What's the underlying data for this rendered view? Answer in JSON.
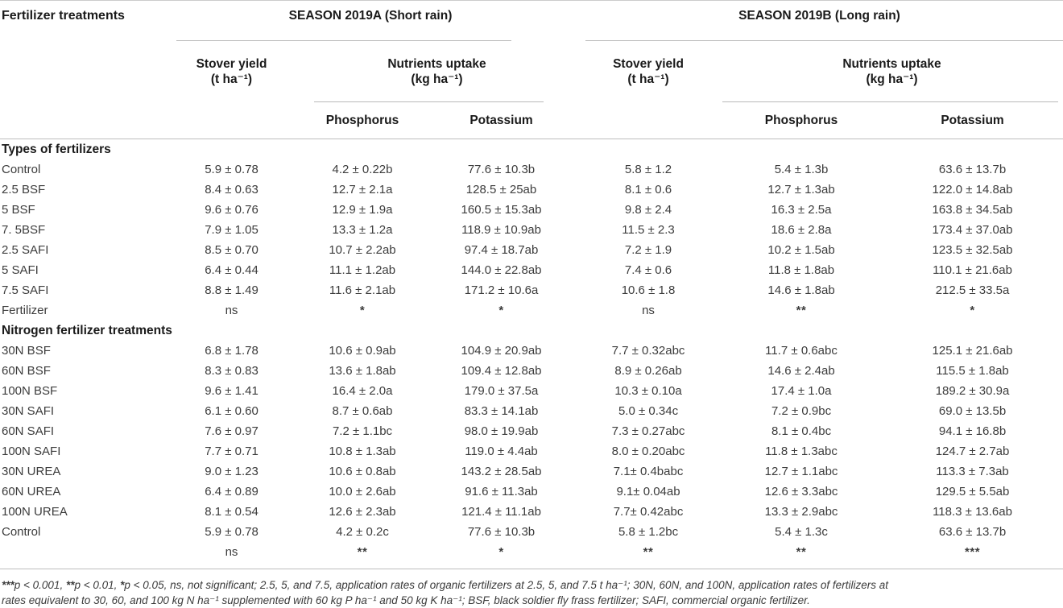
{
  "table": {
    "col1_header": "Fertilizer treatments",
    "season_a": "SEASON 2019A (Short rain)",
    "season_b": "SEASON 2019B (Long rain)",
    "headers": {
      "stover_yield": "Stover yield",
      "stover_unit": "(t ha⁻¹)",
      "nutrients_uptake": "Nutrients uptake",
      "nutrients_unit": "(kg ha⁻¹)",
      "phosphorus": "Phosphorus",
      "potassium": "Potassium"
    },
    "sections": [
      {
        "title": "Types of fertilizers",
        "rows": [
          {
            "label": "Control",
            "cells": [
              "5.9 ± 0.78",
              "4.2 ± 0.22b",
              "77.6 ± 10.3b",
              "5.8 ± 1.2",
              "5.4 ± 1.3b",
              "63.6 ± 13.7b"
            ]
          },
          {
            "label": "2.5 BSF",
            "cells": [
              "8.4 ± 0.63",
              "12.7 ± 2.1a",
              "128.5 ± 25ab",
              "8.1 ± 0.6",
              "12.7 ± 1.3ab",
              "122.0 ± 14.8ab"
            ]
          },
          {
            "label": "5 BSF",
            "cells": [
              "9.6 ± 0.76",
              "12.9 ± 1.9a",
              "160.5 ± 15.3ab",
              "9.8 ± 2.4",
              "16.3 ± 2.5a",
              "163.8 ± 34.5ab"
            ]
          },
          {
            "label": "7. 5BSF",
            "cells": [
              "7.9 ± 1.05",
              "13.3 ± 1.2a",
              "118.9 ± 10.9ab",
              "11.5 ± 2.3",
              "18.6 ± 2.8a",
              "173.4 ± 37.0ab"
            ]
          },
          {
            "label": "2.5 SAFI",
            "cells": [
              "8.5 ± 0.70",
              "10.7 ± 2.2ab",
              "97.4 ± 18.7ab",
              "7.2 ± 1.9",
              "10.2 ± 1.5ab",
              "123.5 ± 32.5ab"
            ]
          },
          {
            "label": "5 SAFI",
            "cells": [
              "6.4 ± 0.44",
              "11.1 ± 1.2ab",
              "144.0 ± 22.8ab",
              "7.4 ± 0.6",
              "11.8 ± 1.8ab",
              "110.1 ± 21.6ab"
            ]
          },
          {
            "label": "7.5 SAFI",
            "cells": [
              "8.8 ± 1.49",
              "11.6 ± 2.1ab",
              "171.2 ± 10.6a",
              "10.6 ± 1.8",
              "14.6 ± 1.8ab",
              "212.5 ± 33.5a"
            ]
          },
          {
            "label": "Fertilizer",
            "cells": [
              "ns",
              "*",
              "*",
              "ns",
              "**",
              "*"
            ]
          }
        ]
      },
      {
        "title": "Nitrogen fertilizer treatments",
        "rows": [
          {
            "label": "30N BSF",
            "cells": [
              "6.8 ± 1.78",
              "10.6 ± 0.9ab",
              "104.9 ± 20.9ab",
              "7.7 ± 0.32abc",
              "11.7 ± 0.6abc",
              "125.1 ± 21.6ab"
            ]
          },
          {
            "label": "60N BSF",
            "cells": [
              "8.3 ± 0.83",
              "13.6 ± 1.8ab",
              "109.4 ± 12.8ab",
              "8.9 ± 0.26ab",
              "14.6 ± 2.4ab",
              "115.5 ± 1.8ab"
            ]
          },
          {
            "label": "100N BSF",
            "cells": [
              "9.6 ± 1.41",
              "16.4 ± 2.0a",
              "179.0 ± 37.5a",
              "10.3 ± 0.10a",
              "17.4 ± 1.0a",
              "189.2 ± 30.9a"
            ]
          },
          {
            "label": "30N SAFI",
            "cells": [
              "6.1 ± 0.60",
              "8.7 ± 0.6ab",
              "83.3 ± 14.1ab",
              "5.0 ± 0.34c",
              "7.2 ± 0.9bc",
              "69.0 ± 13.5b"
            ]
          },
          {
            "label": "60N SAFI",
            "cells": [
              "7.6 ± 0.97",
              "7.2 ± 1.1bc",
              "98.0 ± 19.9ab",
              "7.3 ± 0.27abc",
              "8.1 ± 0.4bc",
              "94.1 ± 16.8b"
            ]
          },
          {
            "label": "100N SAFI",
            "cells": [
              "7.7 ± 0.71",
              "10.8 ± 1.3ab",
              "119.0 ± 4.4ab",
              "8.0 ± 0.20abc",
              "11.8 ± 1.3abc",
              "124.7 ± 2.7ab"
            ]
          },
          {
            "label": "30N UREA",
            "cells": [
              "9.0 ± 1.23",
              "10.6 ± 0.8ab",
              "143.2 ± 28.5ab",
              "7.1± 0.4babc",
              "12.7 ± 1.1abc",
              "113.3 ± 7.3ab"
            ]
          },
          {
            "label": "60N UREA",
            "cells": [
              "6.4 ± 0.89",
              "10.0 ± 2.6ab",
              "91.6 ± 11.3ab",
              "9.1± 0.04ab",
              "12.6 ± 3.3abc",
              "129.5 ± 5.5ab"
            ]
          },
          {
            "label": "100N UREA",
            "cells": [
              "8.1 ± 0.54",
              "12.6 ± 2.3ab",
              "121.4 ± 11.1ab",
              "7.7± 0.42abc",
              "13.3 ± 2.9abc",
              "118.3 ± 13.6ab"
            ]
          },
          {
            "label": "Control",
            "cells": [
              "5.9 ± 0.78",
              "4.2 ± 0.2c",
              "77.6 ± 10.3b",
              "5.8 ± 1.2bc",
              "5.4 ± 1.3c",
              "63.6 ± 13.7b"
            ]
          },
          {
            "label": "",
            "cells": [
              "ns",
              "**",
              "*",
              "**",
              "**",
              "***"
            ]
          }
        ]
      }
    ],
    "footnote": {
      "line1_segments": [
        {
          "text": "***",
          "bold": true
        },
        {
          "text": "p < 0.001, ",
          "bold": false
        },
        {
          "text": "**",
          "bold": true
        },
        {
          "text": "p < 0.01, ",
          "bold": false
        },
        {
          "text": "*",
          "bold": true
        },
        {
          "text": "p < 0.05, ns, not significant; 2.5, 5, and 7.5, application rates of organic fertilizers at 2.5, 5, and 7.5 t ha⁻¹; 30N, 60N, and 100N, application rates of fertilizers at",
          "bold": false
        }
      ],
      "line2_segments": [
        {
          "text": "rates equivalent to 30, 60, and 100 kg N ha⁻¹ supplemented with 60 kg P ha⁻¹ and 50 kg K ha⁻¹; BSF, black soldier fly frass fertilizer; SAFI, commercial organic fertilizer.",
          "bold": false
        }
      ]
    }
  }
}
